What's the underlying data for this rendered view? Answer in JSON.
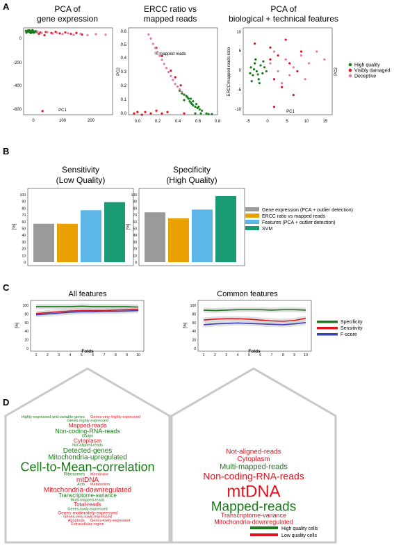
{
  "panel_labels": [
    "A",
    "B",
    "C",
    "D"
  ],
  "colors": {
    "high": "#1a7a1a",
    "damaged": "#e0141e",
    "deceptive": "#e07ab0",
    "gray": "#9a9a9a",
    "orange": "#e9a000",
    "lightblue": "#5cb6e8",
    "teal": "#1b9a76",
    "blue": "#3a3fbf",
    "band": "#c8c8c8"
  },
  "panelA": {
    "p1": {
      "title1": "PCA of",
      "title2": "gene expression",
      "xlabel": "PC1",
      "ylabel": "PC2",
      "xticks": [
        "0",
        "100",
        "200"
      ],
      "yticks": [
        "0",
        "-200",
        "-400",
        "-600"
      ]
    },
    "p2": {
      "title1": "ERCC ratio vs",
      "title2": "mapped reads",
      "xlabel": "% mapped reads",
      "ylabel": "ERCC/mapped reads ratio",
      "xticks": [
        "0.0",
        "0.2",
        "0.4",
        "0.6",
        "0.8"
      ],
      "yticks": [
        "0.0",
        "0.1",
        "0.2",
        "0.3",
        "0.4",
        "0.5",
        "0.6"
      ]
    },
    "p3": {
      "title1": "PCA of",
      "title2": "biological + technical features",
      "xlabel": "PC1",
      "ylabel": "PC2",
      "xticks": [
        "-5",
        "0",
        "5",
        "10",
        "15"
      ],
      "yticks": [
        "10",
        "5",
        "0",
        "-5",
        "-10"
      ]
    },
    "legend": [
      "High quality",
      "Visibly damaged",
      "Deceptive"
    ]
  },
  "panelB": {
    "legend": [
      "Gene expression (PCA + outlier detection)",
      "ERCC ratio vs mapped reads",
      "Features (PCA + outlier detection)",
      "SVM"
    ],
    "ylabel": "[%]",
    "yticks": [
      "100",
      "90",
      "80",
      "70",
      "60",
      "50",
      "40",
      "30",
      "20",
      "10",
      "0"
    ]
  },
  "panelC": {
    "legend": [
      "Specificity",
      "Sensitivity",
      "F-score"
    ],
    "xlabel": "Folds",
    "ylabel": "[%]",
    "xticks": [
      "1",
      "2",
      "3",
      "4",
      "5",
      "6",
      "7",
      "8",
      "9",
      "10"
    ],
    "yticks_left": [
      "100",
      "80",
      "60",
      "40",
      "20",
      "0"
    ],
    "yticks_right": [
      "100",
      "80",
      "60",
      "40",
      "20",
      "0"
    ]
  },
  "panelD": {
    "left_words": [
      {
        "t": "Highly-expressed-and-variable-genes",
        "c": "g",
        "s": 5.5
      },
      {
        "t": "Genes-very-highly-expressed",
        "c": "r",
        "s": 5.5
      },
      {
        "t": "Genes-highly-expressed",
        "c": "g",
        "s": 5.5
      },
      {
        "t": "Mapped-reads",
        "c": "r",
        "s": 8.5
      },
      {
        "t": "Non-coding-RNA-reads",
        "c": "g",
        "s": 9
      },
      {
        "t": "Gadph",
        "c": "g",
        "s": 5.5
      },
      {
        "t": "Cytoplasm",
        "c": "r",
        "s": 8.5
      },
      {
        "t": "Not-aligned-reads",
        "c": "g",
        "s": 5.5
      },
      {
        "t": "Detected-genes",
        "c": "g",
        "s": 10
      },
      {
        "t": "Mitochondria-upregulated",
        "c": "g",
        "s": 10
      },
      {
        "t": "Cell-to-Mean-correlation",
        "c": "g",
        "s": 18
      },
      {
        "t": "Ribosomes",
        "c": "g",
        "s": 6
      },
      {
        "t": "Membrane",
        "c": "r",
        "s": 5.5
      },
      {
        "t": "mtDNA",
        "c": "r",
        "s": 10
      },
      {
        "t": "Actb",
        "c": "g",
        "s": 5.5
      },
      {
        "t": "Metabolism",
        "c": "r",
        "s": 5.5
      },
      {
        "t": "Mitochondria-downregulated",
        "c": "r",
        "s": 10
      },
      {
        "t": "Transcriptome-variance",
        "c": "g",
        "s": 8
      },
      {
        "t": "Multi-mapped-reads",
        "c": "g",
        "s": 5.5
      },
      {
        "t": "Total-reads",
        "c": "r",
        "s": 8
      },
      {
        "t": "Genes-lowly-expressed",
        "c": "g",
        "s": 5.5
      },
      {
        "t": "Genes-moderately-expressed",
        "c": "r",
        "s": 6.5
      },
      {
        "t": "Genes-very-lowly-expressed",
        "c": "r",
        "s": 5.5
      },
      {
        "t": "Apoptosis",
        "c": "r",
        "s": 5.5
      },
      {
        "t": "Genes-lowly-expressed",
        "c": "r",
        "s": 5.5
      },
      {
        "t": "Extracellular-region",
        "c": "r",
        "s": 5.5
      }
    ],
    "right_words": [
      {
        "t": "Not-aligned-reads",
        "c": "r",
        "s": 10
      },
      {
        "t": "Cytoplasm",
        "c": "r",
        "s": 10
      },
      {
        "t": "Multi-mapped-reads",
        "c": "g",
        "s": 11
      },
      {
        "t": "Non-coding-RNA-reads",
        "c": "r",
        "s": 14
      },
      {
        "t": "mtDNA",
        "c": "r",
        "s": 24
      },
      {
        "t": "Mapped-reads",
        "c": "g",
        "s": 19
      },
      {
        "t": "Transcriptome-variance",
        "c": "r",
        "s": 9
      },
      {
        "t": "Mitochondria-downregulated",
        "c": "r",
        "s": 9
      }
    ],
    "legend": [
      "High quality cells",
      "Low quality cells"
    ]
  },
  "chart_data": [
    {
      "type": "scatter",
      "title": "PCA of gene expression",
      "xlabel": "PC1",
      "ylabel": "PC2",
      "xlim": [
        -20,
        300
      ],
      "ylim": [
        -680,
        30
      ],
      "series": [
        {
          "name": "High quality",
          "points": [
            [
              -12,
              5
            ],
            [
              -8,
              -3
            ],
            [
              -5,
              8
            ],
            [
              -2,
              0
            ],
            [
              2,
              -6
            ],
            [
              5,
              4
            ],
            [
              8,
              -2
            ],
            [
              10,
              6
            ],
            [
              13,
              -8
            ],
            [
              16,
              2
            ],
            [
              20,
              -4
            ],
            [
              24,
              3
            ],
            [
              -10,
              -10
            ],
            [
              0,
              10
            ],
            [
              6,
              -12
            ],
            [
              12,
              12
            ],
            [
              18,
              -10
            ],
            [
              28,
              -6
            ]
          ]
        },
        {
          "name": "Visibly damaged",
          "points": [
            [
              40,
              -8
            ],
            [
              60,
              -5
            ],
            [
              80,
              -12
            ],
            [
              95,
              -3
            ],
            [
              110,
              -15
            ],
            [
              130,
              -8
            ],
            [
              150,
              -20
            ],
            [
              170,
              -12
            ],
            [
              190,
              -25
            ],
            [
              35,
              -20
            ],
            [
              55,
              -30
            ],
            [
              48,
              -650
            ]
          ]
        },
        {
          "name": "Deceptive",
          "points": [
            [
              30,
              -2
            ],
            [
              45,
              -12
            ],
            [
              65,
              -6
            ],
            [
              85,
              -18
            ],
            [
              100,
              -10
            ],
            [
              120,
              -22
            ],
            [
              140,
              -14
            ],
            [
              160,
              -28
            ],
            [
              185,
              -18
            ],
            [
              210,
              -30
            ],
            [
              240,
              -22
            ],
            [
              275,
              -26
            ]
          ]
        }
      ]
    },
    {
      "type": "scatter",
      "title": "ERCC ratio vs mapped reads",
      "xlabel": "% mapped reads",
      "ylabel": "ERCC/mapped reads ratio",
      "xlim": [
        0,
        0.8
      ],
      "ylim": [
        0,
        0.65
      ],
      "series": [
        {
          "name": "High quality",
          "points": [
            [
              0.46,
              0.18
            ],
            [
              0.48,
              0.16
            ],
            [
              0.5,
              0.15
            ],
            [
              0.52,
              0.14
            ],
            [
              0.54,
              0.12
            ],
            [
              0.55,
              0.1
            ],
            [
              0.56,
              0.09
            ],
            [
              0.57,
              0.08
            ],
            [
              0.58,
              0.07
            ],
            [
              0.6,
              0.06
            ],
            [
              0.62,
              0.05
            ],
            [
              0.64,
              0.04
            ],
            [
              0.66,
              0.03
            ],
            [
              0.5,
              0.11
            ],
            [
              0.53,
              0.13
            ],
            [
              0.58,
              0.1
            ],
            [
              0.61,
              0.08
            ],
            [
              0.63,
              0.06
            ],
            [
              0.56,
              0.12
            ],
            [
              0.6,
              0.01
            ],
            [
              0.65,
              0.01
            ],
            [
              0.7,
              0.01
            ],
            [
              0.72,
              0.005
            ],
            [
              0.75,
              0.005
            ]
          ]
        },
        {
          "name": "Visibly damaged",
          "points": [
            [
              0.05,
              0.01
            ],
            [
              0.08,
              0.02
            ],
            [
              0.12,
              0.0
            ],
            [
              0.15,
              0.02
            ],
            [
              0.2,
              0.01
            ],
            [
              0.25,
              0.03
            ],
            [
              0.3,
              0.01
            ],
            [
              0.35,
              0.02
            ],
            [
              0.42,
              0.28
            ],
            [
              0.38,
              0.33
            ],
            [
              0.47,
              0.22
            ],
            [
              0.3,
              0.44
            ],
            [
              0.25,
              0.5
            ],
            [
              0.5,
              0.01
            ]
          ]
        },
        {
          "name": "Deceptive",
          "points": [
            [
              0.18,
              0.6
            ],
            [
              0.2,
              0.57
            ],
            [
              0.22,
              0.53
            ],
            [
              0.24,
              0.5
            ],
            [
              0.26,
              0.47
            ],
            [
              0.28,
              0.44
            ],
            [
              0.3,
              0.41
            ],
            [
              0.32,
              0.38
            ],
            [
              0.34,
              0.35
            ],
            [
              0.36,
              0.32
            ],
            [
              0.38,
              0.29
            ],
            [
              0.4,
              0.26
            ],
            [
              0.42,
              0.23
            ],
            [
              0.44,
              0.21
            ],
            [
              0.46,
              0.19
            ],
            [
              0.48,
              0.17
            ]
          ]
        }
      ]
    },
    {
      "type": "scatter",
      "title": "PCA of biological + technical features",
      "xlabel": "PC1",
      "ylabel": "PC2",
      "xlim": [
        -5,
        18
      ],
      "ylim": [
        -11,
        11
      ],
      "series": [
        {
          "name": "High quality",
          "points": [
            [
              -3,
              1
            ],
            [
              -2.5,
              -1
            ],
            [
              -2,
              2
            ],
            [
              -1.5,
              0
            ],
            [
              -1,
              -2
            ],
            [
              -0.5,
              1.5
            ],
            [
              0,
              -0.5
            ],
            [
              0.5,
              1
            ],
            [
              -2.8,
              -2.5
            ],
            [
              -1.8,
              3
            ],
            [
              -0.8,
              -3
            ],
            [
              0.2,
              2.5
            ],
            [
              -2.2,
              0.5
            ],
            [
              -1.2,
              -0.8
            ],
            [
              -3.2,
              -0.5
            ],
            [
              1,
              0
            ]
          ]
        },
        {
          "name": "Visibly damaged",
          "points": [
            [
              2,
              6
            ],
            [
              4,
              4
            ],
            [
              6,
              8
            ],
            [
              3,
              -2
            ],
            [
              5,
              -4
            ],
            [
              7,
              2
            ],
            [
              8,
              -6
            ],
            [
              10,
              5
            ],
            [
              3,
              -9
            ],
            [
              2,
              3
            ],
            [
              9,
              0
            ],
            [
              -2,
              7
            ]
          ]
        },
        {
          "name": "Deceptive",
          "points": [
            [
              2,
              2
            ],
            [
              4,
              0
            ],
            [
              6,
              3
            ],
            [
              8,
              1
            ],
            [
              10,
              4
            ],
            [
              12,
              2
            ],
            [
              14,
              5
            ],
            [
              16,
              3
            ],
            [
              5,
              -3
            ],
            [
              7,
              -1
            ],
            [
              11,
              -2
            ],
            [
              3,
              5
            ]
          ]
        }
      ]
    },
    {
      "type": "bar",
      "title": "Sensitivity (Low Quality)",
      "categories": [
        "Gene expression (PCA + outlier detection)",
        "ERCC ratio vs mapped reads",
        "Features (PCA + outlier detection)",
        "SVM"
      ],
      "values": [
        57,
        57,
        77,
        89
      ],
      "ylabel": "[%]",
      "ylim": [
        0,
        100
      ]
    },
    {
      "type": "bar",
      "title": "Specificity (High Quality)",
      "categories": [
        "Gene expression (PCA + outlier detection)",
        "ERCC ratio vs mapped reads",
        "Features (PCA + outlier detection)",
        "SVM"
      ],
      "values": [
        74,
        65,
        78,
        98
      ],
      "ylabel": "[%]",
      "ylim": [
        0,
        100
      ]
    },
    {
      "type": "line",
      "title": "All features",
      "xlabel": "Folds",
      "ylabel": "[%]",
      "x": [
        1,
        2,
        3,
        4,
        5,
        6,
        7,
        8,
        9,
        10
      ],
      "ylim": [
        0,
        100
      ],
      "series": [
        {
          "name": "Specificity",
          "values": [
            97,
            97,
            97,
            97,
            98,
            97,
            97,
            97,
            97,
            96
          ]
        },
        {
          "name": "Sensitivity",
          "values": [
            81,
            83,
            85,
            87,
            88,
            88,
            88,
            89,
            90,
            91
          ]
        },
        {
          "name": "F-score",
          "values": [
            78,
            80,
            82,
            84,
            85,
            85,
            86,
            86,
            87,
            88
          ]
        }
      ]
    },
    {
      "type": "line",
      "title": "Common features",
      "xlabel": "Folds",
      "ylabel": "[%]",
      "x": [
        1,
        2,
        3,
        4,
        5,
        6,
        7,
        8,
        9,
        10
      ],
      "ylim": [
        0,
        100
      ],
      "series": [
        {
          "name": "Specificity",
          "values": [
            89,
            88,
            89,
            90,
            90,
            90,
            89,
            90,
            90,
            89
          ]
        },
        {
          "name": "Sensitivity",
          "values": [
            66,
            68,
            69,
            69,
            68,
            66,
            64,
            63,
            65,
            70
          ]
        },
        {
          "name": "F-score",
          "values": [
            55,
            57,
            58,
            59,
            58,
            57,
            56,
            55,
            57,
            60
          ]
        }
      ]
    }
  ]
}
